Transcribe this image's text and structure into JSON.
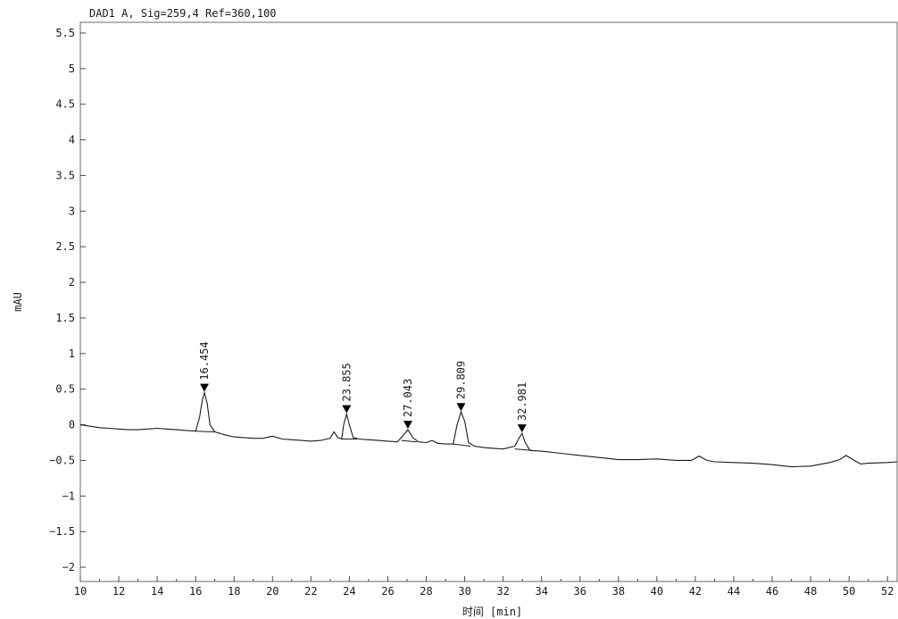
{
  "chart_data": {
    "type": "line",
    "title": "DAD1 A, Sig=259,4 Ref=360,100",
    "xlabel": "时间 [min]",
    "ylabel": "mAU",
    "xlim": [
      10,
      52.5
    ],
    "ylim": [
      -2.2,
      5.65
    ],
    "x_ticks": [
      10,
      12,
      14,
      16,
      18,
      20,
      22,
      24,
      26,
      28,
      30,
      32,
      34,
      36,
      38,
      40,
      42,
      44,
      46,
      48,
      50,
      52
    ],
    "y_ticks": [
      -2,
      -1.5,
      -1,
      -0.5,
      0,
      0.5,
      1,
      1.5,
      2,
      2.5,
      3,
      3.5,
      4,
      4.5,
      5,
      5.5
    ],
    "y_tick_labels": [
      "−2",
      "−1.5",
      "−1",
      "−0.5",
      "0",
      "0.5",
      "1",
      "1.5",
      "2",
      "2.5",
      "3",
      "3.5",
      "4",
      "4.5",
      "5",
      "5.5"
    ],
    "grid": false,
    "series": [
      {
        "x": [
          10,
          10.5,
          11,
          11.5,
          12,
          12.5,
          13,
          13.5,
          14,
          14.5,
          15,
          15.5,
          16,
          16.2,
          16.35,
          16.454,
          16.6,
          16.75,
          17,
          17.5,
          18,
          18.5,
          19,
          19.5,
          20,
          20.5,
          21,
          21.5,
          22,
          22.5,
          23,
          23.2,
          23.4,
          23.6,
          23.7,
          23.855,
          24,
          24.2,
          24.5,
          25,
          25.5,
          26,
          26.5,
          26.8,
          27.043,
          27.3,
          27.6,
          28,
          28.3,
          28.6,
          29,
          29.4,
          29.6,
          29.809,
          30,
          30.2,
          30.5,
          31,
          31.5,
          32,
          32.6,
          32.8,
          32.981,
          33.15,
          33.4,
          34,
          35,
          36,
          37,
          38,
          39,
          40,
          41,
          41.8,
          42.2,
          42.6,
          43,
          44,
          45,
          46,
          47,
          48,
          49,
          49.5,
          49.85,
          50.2,
          50.6,
          51,
          52,
          52.5
        ],
        "y": [
          0.0,
          -0.02,
          -0.04,
          -0.05,
          -0.06,
          -0.07,
          -0.07,
          -0.06,
          -0.05,
          -0.06,
          -0.07,
          -0.08,
          -0.09,
          0.1,
          0.35,
          0.45,
          0.3,
          0.0,
          -0.1,
          -0.14,
          -0.17,
          -0.18,
          -0.19,
          -0.19,
          -0.16,
          -0.2,
          -0.21,
          -0.22,
          -0.23,
          -0.22,
          -0.19,
          -0.1,
          -0.18,
          -0.2,
          0.0,
          0.15,
          0.0,
          -0.18,
          -0.2,
          -0.21,
          -0.22,
          -0.23,
          -0.24,
          -0.15,
          -0.07,
          -0.18,
          -0.24,
          -0.25,
          -0.22,
          -0.26,
          -0.27,
          -0.27,
          0.0,
          0.18,
          0.05,
          -0.25,
          -0.3,
          -0.32,
          -0.33,
          -0.34,
          -0.3,
          -0.2,
          -0.12,
          -0.25,
          -0.36,
          -0.37,
          -0.4,
          -0.43,
          -0.46,
          -0.49,
          -0.49,
          -0.48,
          -0.5,
          -0.5,
          -0.44,
          -0.5,
          -0.52,
          -0.53,
          -0.54,
          -0.56,
          -0.59,
          -0.58,
          -0.53,
          -0.49,
          -0.43,
          -0.49,
          -0.55,
          -0.54,
          -0.53,
          -0.52
        ]
      }
    ],
    "peaks": [
      {
        "label": "16.454",
        "x": 16.454,
        "y": 0.45
      },
      {
        "label": "23.855",
        "x": 23.855,
        "y": 0.15
      },
      {
        "label": "27.043",
        "x": 27.043,
        "y": -0.07
      },
      {
        "label": "29.809",
        "x": 29.809,
        "y": 0.18
      },
      {
        "label": "32.981",
        "x": 32.981,
        "y": -0.12
      }
    ],
    "baselines": [
      {
        "x": [
          16.0,
          17.0
        ],
        "y": [
          -0.09,
          -0.1
        ]
      },
      {
        "x": [
          23.6,
          24.4
        ],
        "y": [
          -0.2,
          -0.2
        ]
      },
      {
        "x": [
          26.7,
          27.5
        ],
        "y": [
          -0.22,
          -0.24
        ]
      },
      {
        "x": [
          29.4,
          30.3
        ],
        "y": [
          -0.27,
          -0.3
        ]
      },
      {
        "x": [
          32.6,
          33.5
        ],
        "y": [
          -0.34,
          -0.36
        ]
      }
    ]
  }
}
